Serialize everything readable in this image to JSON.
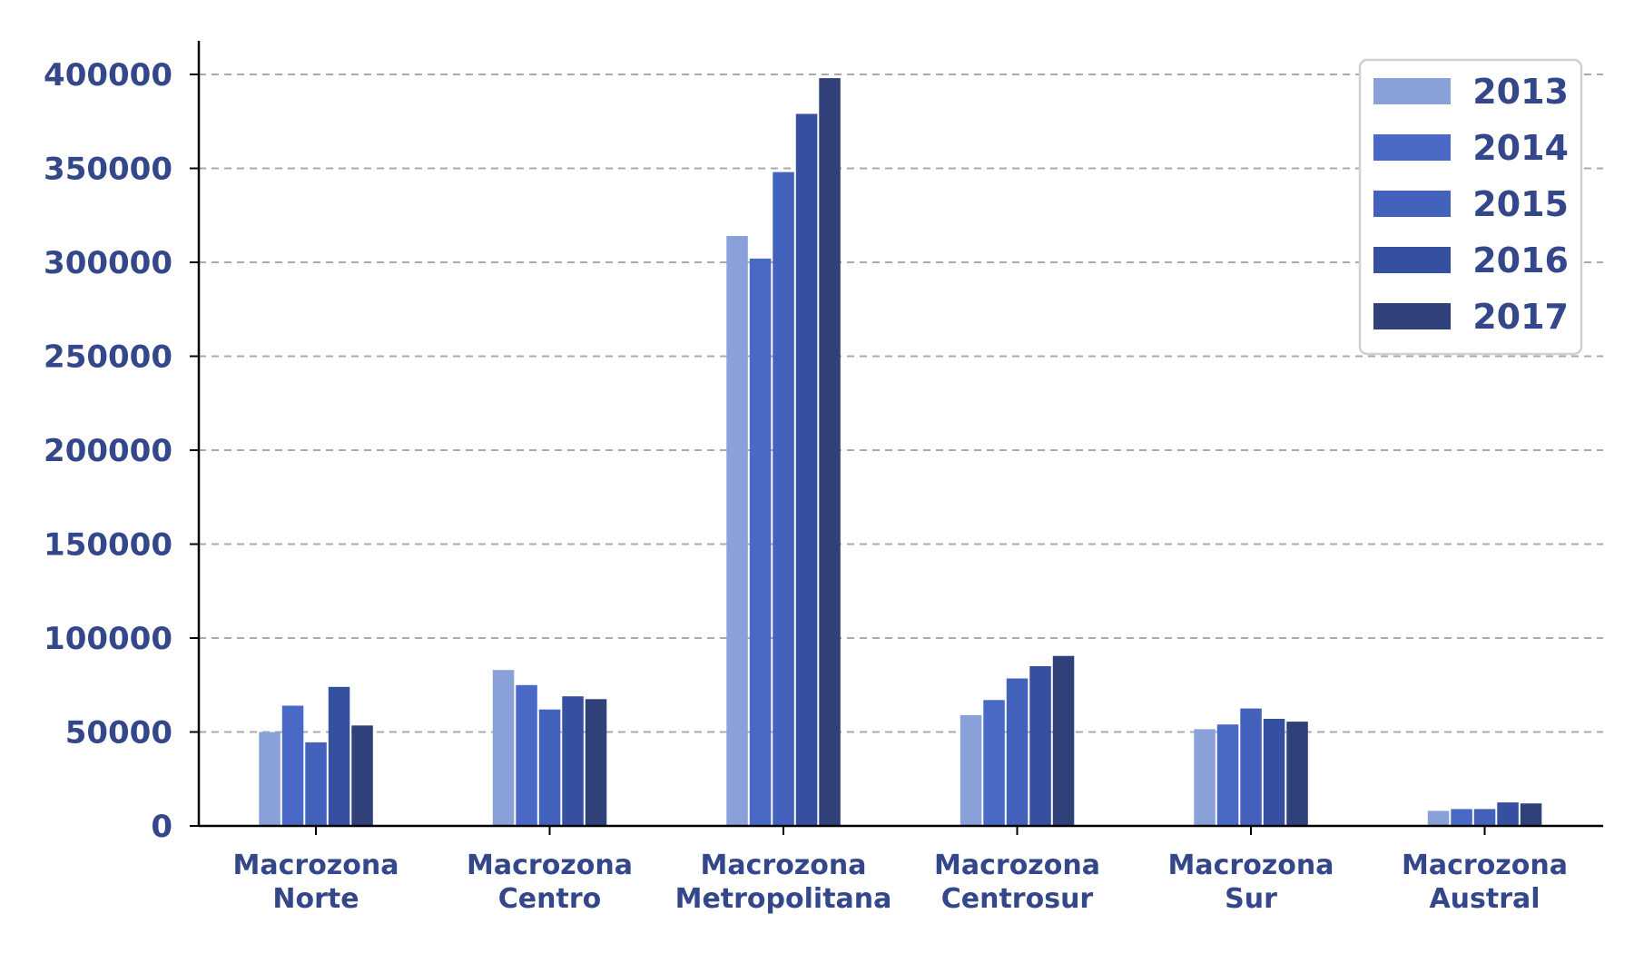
{
  "chart_data": {
    "type": "bar",
    "title": "",
    "xlabel": "",
    "ylabel": "",
    "ylim": [
      0,
      420000
    ],
    "yticks": [
      0,
      50000,
      100000,
      150000,
      200000,
      250000,
      300000,
      350000,
      400000
    ],
    "grid": true,
    "legend_position": "top-right",
    "categories": [
      [
        "Macrozona",
        "Norte"
      ],
      [
        "Macrozona",
        "Centro"
      ],
      [
        "Macrozona",
        "Metropolitana"
      ],
      [
        "Macrozona",
        "Centrosur"
      ],
      [
        "Macrozona",
        "Sur"
      ],
      [
        "Macrozona",
        "Austral"
      ]
    ],
    "series": [
      {
        "name": "2013",
        "color": "#8aa0d8",
        "values": [
          50000,
          83000,
          314000,
          59000,
          51500,
          8000
        ]
      },
      {
        "name": "2014",
        "color": "#4a69c6",
        "values": [
          64000,
          75000,
          302000,
          67000,
          54000,
          9000
        ]
      },
      {
        "name": "2015",
        "color": "#4262bb",
        "values": [
          44500,
          62000,
          348000,
          78500,
          62500,
          9000
        ]
      },
      {
        "name": "2016",
        "color": "#34509f",
        "values": [
          74000,
          69000,
          379000,
          85000,
          57000,
          12500
        ]
      },
      {
        "name": "2017",
        "color": "#2f4178",
        "values": [
          53500,
          67500,
          398000,
          90500,
          55500,
          12000
        ]
      }
    ]
  }
}
